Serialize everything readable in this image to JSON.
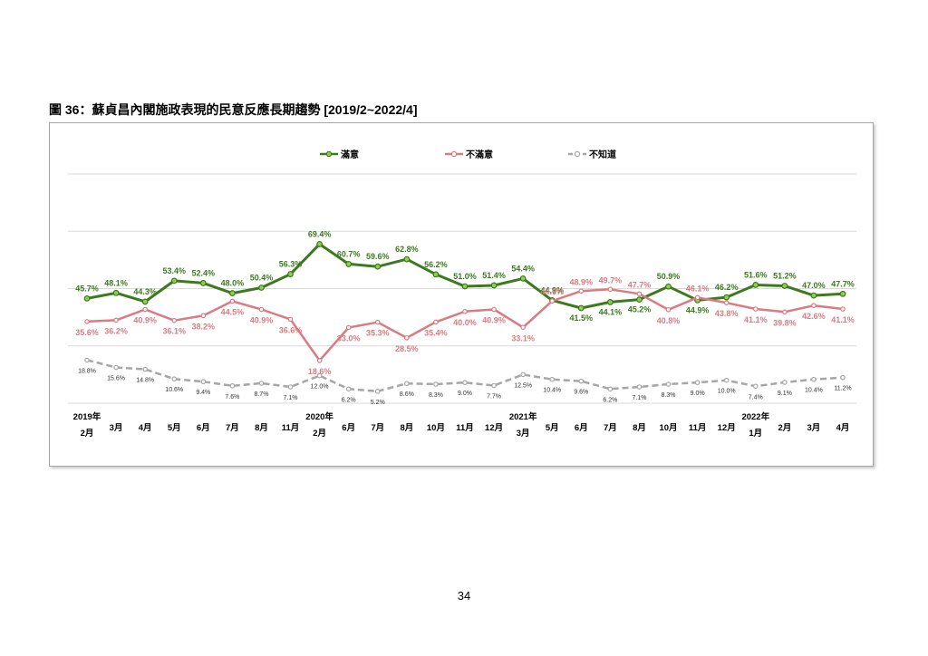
{
  "figure": {
    "title": "圖 36：蘇貞昌內閣施政表現的民意反應長期趨勢 [2019/2~2022/4]"
  },
  "page_number": "34",
  "colors": {
    "satisfied": "#3b7a1f",
    "dissatisfied": "#d97b82",
    "unknown": "#a6a6a6",
    "grid": "#d9d9d9"
  },
  "chart_data": {
    "type": "line",
    "title": "",
    "xlabel": "",
    "ylabel": "",
    "ylim": [
      0,
      100
    ],
    "grid": true,
    "legend_position": "top-center",
    "categories": [
      [
        "2019年",
        "2月"
      ],
      [
        "",
        "3月"
      ],
      [
        "",
        "4月"
      ],
      [
        "",
        "5月"
      ],
      [
        "",
        "6月"
      ],
      [
        "",
        "7月"
      ],
      [
        "",
        "8月"
      ],
      [
        "",
        "11月"
      ],
      [
        "2020年",
        "2月"
      ],
      [
        "",
        "6月"
      ],
      [
        "",
        "7月"
      ],
      [
        "",
        "8月"
      ],
      [
        "",
        "10月"
      ],
      [
        "",
        "11月"
      ],
      [
        "",
        "12月"
      ],
      [
        "2021年",
        "3月"
      ],
      [
        "",
        "5月"
      ],
      [
        "",
        "6月"
      ],
      [
        "",
        "7月"
      ],
      [
        "",
        "8月"
      ],
      [
        "",
        "10月"
      ],
      [
        "",
        "11月"
      ],
      [
        "",
        "12月"
      ],
      [
        "2022年",
        "1月"
      ],
      [
        "",
        "2月"
      ],
      [
        "",
        "3月"
      ],
      [
        "",
        "4月"
      ]
    ],
    "series": [
      {
        "name": "滿意",
        "color": "#3b7a1f",
        "values": [
          45.7,
          48.1,
          44.3,
          53.4,
          52.4,
          48.0,
          50.4,
          56.3,
          69.4,
          60.7,
          59.6,
          62.8,
          56.2,
          51.0,
          51.4,
          54.4,
          44.9,
          41.5,
          44.1,
          45.2,
          50.9,
          44.9,
          46.2,
          51.6,
          51.2,
          47.0,
          47.7
        ],
        "labels": [
          "45.7%",
          "48.1%",
          "44.3%",
          "53.4%",
          "52.4%",
          "48.0%",
          "50.4%",
          "56.3%",
          "69.4%",
          "60.7%",
          "59.6%",
          "62.8%",
          "56.2%",
          "51.0%",
          "51.4%",
          "54.4%",
          "44.9%",
          "41.5%",
          "44.1%",
          "45.2%",
          "50.9%",
          "44.9%",
          "46.2%",
          "51.6%",
          "51.2%",
          "47.0%",
          "47.7%"
        ]
      },
      {
        "name": "不滿意",
        "color": "#d97b82",
        "values": [
          35.6,
          36.2,
          40.9,
          36.1,
          38.2,
          44.5,
          40.9,
          36.6,
          18.6,
          33.0,
          35.3,
          28.5,
          35.4,
          40.0,
          40.9,
          33.1,
          44.6,
          48.9,
          49.7,
          47.7,
          40.8,
          46.1,
          43.8,
          41.1,
          39.8,
          42.6,
          41.1
        ],
        "labels": [
          "35.6%",
          "36.2%",
          "40.9%",
          "36.1%",
          "38.2%",
          "44.5%",
          "40.9%",
          "36.6%",
          "18.6%",
          "33.0%",
          "35.3%",
          "28.5%",
          "35.4%",
          "40.0%",
          "40.9%",
          "33.1%",
          "44.6%",
          "48.9%",
          "49.7%",
          "47.7%",
          "40.8%",
          "46.1%",
          "43.8%",
          "41.1%",
          "39.8%",
          "42.6%",
          "41.1%"
        ]
      },
      {
        "name": "不知道",
        "color": "#a6a6a6",
        "values": [
          18.8,
          15.6,
          14.8,
          10.6,
          9.4,
          7.6,
          8.7,
          7.1,
          12.0,
          6.2,
          5.2,
          8.6,
          8.3,
          9.0,
          7.7,
          12.5,
          10.4,
          9.6,
          6.2,
          7.1,
          8.3,
          9.0,
          10.0,
          7.4,
          9.1,
          10.4,
          11.2
        ],
        "labels": [
          "18.8%",
          "15.6%",
          "14.8%",
          "10.6%",
          "9.4%",
          "7.6%",
          "8.7%",
          "7.1%",
          "12.0%",
          "6.2%",
          "5.2%",
          "8.6%",
          "8.3%",
          "9.0%",
          "7.7%",
          "12.5%",
          "10.4%",
          "9.6%",
          "6.2%",
          "7.1%",
          "8.3%",
          "9.0%",
          "10.0%",
          "7.4%",
          "9.1%",
          "10.4%",
          "11.2%"
        ]
      }
    ]
  }
}
